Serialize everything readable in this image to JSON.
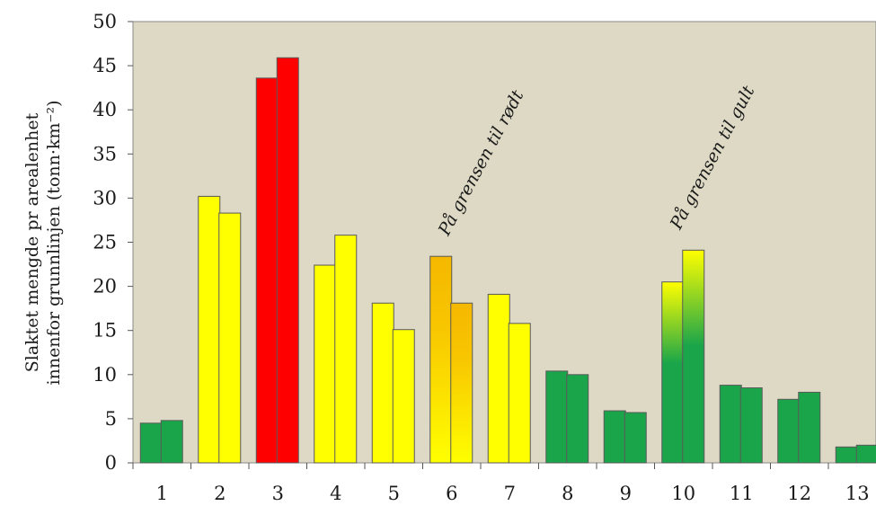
{
  "chart_data": {
    "type": "bar",
    "title": "",
    "xlabel": "",
    "ylabel_line1": "Slaktet mengde pr arealenhet",
    "ylabel_line2": "innenfor grunnlinjen (tonn·km⁻²)",
    "ylim": [
      0,
      50
    ],
    "yticks": [
      0,
      5,
      10,
      15,
      20,
      25,
      30,
      35,
      40,
      45,
      50
    ],
    "categories": [
      "1",
      "2",
      "3",
      "4",
      "5",
      "6",
      "7",
      "8",
      "9",
      "10",
      "11",
      "12",
      "13"
    ],
    "series": [
      {
        "values": [
          4.5,
          30.2,
          43.6,
          22.4,
          18.1,
          23.4,
          19.1,
          10.4,
          5.9,
          20.5,
          8.8,
          7.2,
          1.8
        ]
      },
      {
        "values": [
          4.8,
          28.3,
          45.9,
          25.8,
          15.1,
          18.1,
          15.8,
          10.0,
          5.7,
          24.1,
          8.5,
          8.0,
          2.0
        ]
      }
    ],
    "bar_colors": {
      "1": "green",
      "2": "yellow",
      "3": "red",
      "4": "yellow",
      "5": "yellow",
      "6": "orange-to-yellow",
      "7": "yellow",
      "8": "green",
      "9": "green",
      "10": "yellow-to-green",
      "11": "green",
      "12": "green",
      "13": "green"
    },
    "colors": {
      "green": "#1aa54a",
      "yellow": "#ffff00",
      "red": "#ff0000",
      "orange": "#f5b800",
      "plot_background": "#ddd9c4"
    },
    "annotations": [
      {
        "text": "På grensen til rødt",
        "category": "6"
      },
      {
        "text": "På grensen til gult",
        "category": "10"
      }
    ],
    "grid": false,
    "legend": "none"
  }
}
